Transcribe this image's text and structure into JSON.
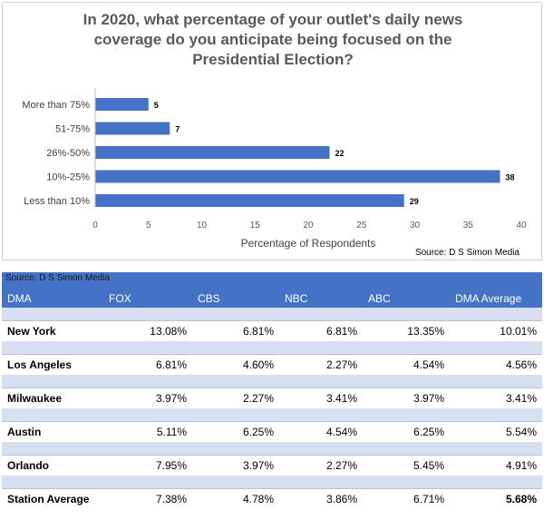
{
  "chart_data": {
    "type": "bar",
    "orientation": "horizontal",
    "title": "In 2020, what percentage of your outlet's daily news coverage do you anticipate being focused on the Presidential Election?",
    "title_lines": [
      "In 2020, what percentage of your outlet's daily news",
      "coverage do you anticipate being focused on the",
      "Presidential Election?"
    ],
    "categories": [
      "More than 75%",
      "51-75%",
      "26%-50%",
      "10%-25%",
      "Less than 10%"
    ],
    "values": [
      5,
      7,
      22,
      38,
      29
    ],
    "xlabel": "Percentage of Respondents",
    "xlim": [
      0,
      40
    ],
    "xticks": [
      "0",
      "5",
      "10",
      "15",
      "20",
      "25",
      "30",
      "35",
      "40"
    ],
    "source": "Source: D S Simon Media",
    "bar_color": "#4472c4",
    "grid": false
  },
  "table": {
    "source": "Source: D S Simon Media",
    "headers": [
      "DMA",
      "FOX",
      "CBS",
      "NBC",
      "ABC",
      "DMA Average"
    ],
    "header_color": "#4472c4",
    "rows": [
      {
        "name": "New York",
        "values": [
          "13.08%",
          "6.81%",
          "6.81%",
          "13.35%",
          "10.01%"
        ]
      },
      {
        "name": "Los Angeles",
        "values": [
          "6.81%",
          "4.60%",
          "2.27%",
          "4.54%",
          "4.56%"
        ]
      },
      {
        "name": "Milwaukee",
        "values": [
          "3.97%",
          "2.27%",
          "3.41%",
          "3.97%",
          "3.41%"
        ]
      },
      {
        "name": "Austin",
        "values": [
          "5.11%",
          "6.25%",
          "4.54%",
          "6.25%",
          "5.54%"
        ]
      },
      {
        "name": "Orlando",
        "values": [
          "7.95%",
          "3.97%",
          "2.27%",
          "5.45%",
          "4.91%"
        ]
      },
      {
        "name": "Station Average",
        "values": [
          "7.38%",
          "4.78%",
          "3.86%",
          "6.71%",
          "5.68%"
        ]
      }
    ]
  }
}
